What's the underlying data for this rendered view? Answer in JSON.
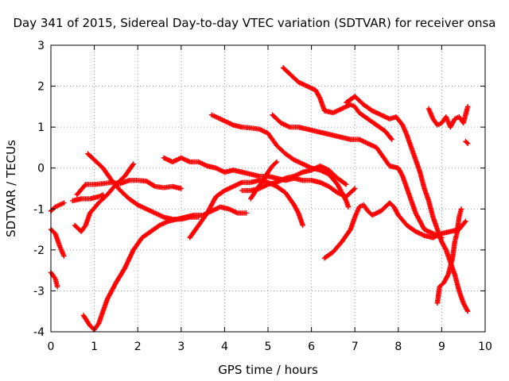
{
  "chart_data": {
    "type": "scatter",
    "title": "Day 341 of 2015, Sidereal Day-to-day VTEC variation (SDTVAR) for receiver onsa",
    "xlabel": "GPS time / hours",
    "ylabel": "SDTVAR / TECUs",
    "xlim": [
      0,
      10
    ],
    "ylim": [
      -4,
      3
    ],
    "x_ticks": [
      0,
      1,
      2,
      3,
      4,
      5,
      6,
      7,
      8,
      9,
      10
    ],
    "y_ticks": [
      -4,
      -3,
      -2,
      -1,
      0,
      1,
      2,
      3
    ],
    "grid": true,
    "marker": "+",
    "color": "#ff0000",
    "series": [
      {
        "points": [
          [
            0.0,
            -1.05
          ],
          [
            0.1,
            -0.95
          ],
          [
            0.2,
            -0.9
          ],
          [
            0.3,
            -0.85
          ]
        ]
      },
      {
        "points": [
          [
            0.0,
            -1.5
          ],
          [
            0.1,
            -1.6
          ],
          [
            0.2,
            -1.9
          ],
          [
            0.3,
            -2.15
          ]
        ]
      },
      {
        "points": [
          [
            0.0,
            -2.55
          ],
          [
            0.1,
            -2.7
          ],
          [
            0.15,
            -2.9
          ]
        ]
      },
      {
        "points": [
          [
            0.5,
            -0.8
          ],
          [
            0.7,
            -0.75
          ],
          [
            0.9,
            -0.75
          ],
          [
            1.1,
            -0.7
          ],
          [
            1.2,
            -0.65
          ]
        ]
      },
      {
        "points": [
          [
            0.55,
            -1.4
          ],
          [
            0.7,
            -1.55
          ],
          [
            0.8,
            -1.4
          ],
          [
            0.9,
            -1.1
          ],
          [
            1.1,
            -0.85
          ],
          [
            1.3,
            -0.65
          ],
          [
            1.5,
            -0.4
          ],
          [
            1.7,
            -0.2
          ],
          [
            1.9,
            0.1
          ]
        ]
      },
      {
        "points": [
          [
            0.6,
            -0.65
          ],
          [
            0.8,
            -0.4
          ],
          [
            1.0,
            -0.4
          ],
          [
            1.2,
            -0.38
          ],
          [
            1.4,
            -0.35
          ],
          [
            1.6,
            -0.38
          ],
          [
            1.8,
            -0.3
          ],
          [
            2.0,
            -0.3
          ],
          [
            2.2,
            -0.32
          ],
          [
            2.4,
            -0.45
          ],
          [
            2.6,
            -0.48
          ],
          [
            2.8,
            -0.45
          ],
          [
            3.0,
            -0.5
          ]
        ]
      },
      {
        "points": [
          [
            0.85,
            0.35
          ],
          [
            1.0,
            0.2
          ],
          [
            1.2,
            0.0
          ],
          [
            1.4,
            -0.3
          ],
          [
            1.6,
            -0.55
          ],
          [
            1.8,
            -0.75
          ],
          [
            2.0,
            -0.9
          ],
          [
            2.2,
            -1.0
          ],
          [
            2.4,
            -1.1
          ],
          [
            2.6,
            -1.2
          ],
          [
            2.8,
            -1.25
          ],
          [
            3.0,
            -1.25
          ],
          [
            3.2,
            -1.2
          ],
          [
            3.4,
            -1.2
          ]
        ]
      },
      {
        "points": [
          [
            0.75,
            -3.6
          ],
          [
            0.9,
            -3.85
          ],
          [
            1.0,
            -3.95
          ],
          [
            1.1,
            -3.8
          ],
          [
            1.2,
            -3.5
          ],
          [
            1.3,
            -3.2
          ],
          [
            1.5,
            -2.8
          ],
          [
            1.7,
            -2.45
          ],
          [
            1.9,
            -2.0
          ],
          [
            2.1,
            -1.7
          ],
          [
            2.3,
            -1.55
          ],
          [
            2.5,
            -1.4
          ],
          [
            2.7,
            -1.3
          ],
          [
            2.9,
            -1.25
          ],
          [
            3.1,
            -1.2
          ],
          [
            3.3,
            -1.15
          ],
          [
            3.5,
            -1.15
          ],
          [
            3.7,
            -1.05
          ],
          [
            3.9,
            -0.95
          ],
          [
            4.1,
            -1.0
          ],
          [
            4.3,
            -1.1
          ],
          [
            4.5,
            -1.1
          ]
        ]
      },
      {
        "points": [
          [
            2.6,
            0.25
          ],
          [
            2.8,
            0.15
          ],
          [
            3.0,
            0.25
          ],
          [
            3.2,
            0.15
          ],
          [
            3.4,
            0.15
          ],
          [
            3.6,
            0.05
          ],
          [
            3.8,
            0.0
          ],
          [
            4.0,
            -0.1
          ],
          [
            4.2,
            -0.05
          ],
          [
            4.4,
            -0.1
          ],
          [
            4.6,
            -0.15
          ],
          [
            4.8,
            -0.2
          ],
          [
            5.0,
            -0.2
          ],
          [
            5.2,
            -0.25
          ],
          [
            5.4,
            -0.3
          ],
          [
            5.6,
            -0.25
          ],
          [
            5.8,
            -0.3
          ],
          [
            6.0,
            -0.3
          ],
          [
            6.2,
            -0.35
          ],
          [
            6.4,
            -0.45
          ],
          [
            6.6,
            -0.6
          ],
          [
            6.8,
            -0.7
          ],
          [
            7.0,
            -0.5
          ]
        ]
      },
      {
        "points": [
          [
            3.2,
            -1.7
          ],
          [
            3.4,
            -1.4
          ],
          [
            3.6,
            -1.1
          ],
          [
            3.8,
            -0.7
          ],
          [
            4.0,
            -0.55
          ],
          [
            4.2,
            -0.45
          ],
          [
            4.4,
            -0.35
          ],
          [
            4.6,
            -0.35
          ],
          [
            4.8,
            -0.3
          ],
          [
            5.0,
            -0.35
          ],
          [
            5.2,
            -0.45
          ],
          [
            5.4,
            -0.6
          ],
          [
            5.6,
            -0.9
          ],
          [
            5.7,
            -1.1
          ],
          [
            5.8,
            -1.4
          ]
        ]
      },
      {
        "points": [
          [
            3.7,
            1.3
          ],
          [
            3.8,
            1.25
          ],
          [
            4.0,
            1.15
          ],
          [
            4.2,
            1.05
          ],
          [
            4.4,
            1.0
          ],
          [
            4.6,
            0.98
          ],
          [
            4.8,
            0.95
          ],
          [
            5.0,
            0.85
          ],
          [
            5.1,
            0.7
          ],
          [
            5.2,
            0.55
          ],
          [
            5.4,
            0.35
          ],
          [
            5.6,
            0.2
          ],
          [
            5.8,
            0.1
          ],
          [
            6.0,
            0.0
          ],
          [
            6.2,
            -0.05
          ],
          [
            6.4,
            -0.15
          ],
          [
            6.6,
            -0.4
          ],
          [
            6.8,
            -0.8
          ],
          [
            6.85,
            -0.95
          ]
        ]
      },
      {
        "points": [
          [
            4.4,
            -0.55
          ],
          [
            4.6,
            -0.55
          ],
          [
            4.8,
            -0.5
          ],
          [
            5.0,
            -0.4
          ],
          [
            5.2,
            -0.35
          ],
          [
            5.4,
            -0.25
          ],
          [
            5.6,
            -0.2
          ],
          [
            5.8,
            -0.1
          ],
          [
            6.0,
            -0.05
          ],
          [
            6.2,
            0.05
          ],
          [
            6.4,
            -0.05
          ],
          [
            6.6,
            -0.25
          ],
          [
            6.8,
            -0.4
          ]
        ]
      },
      {
        "points": [
          [
            4.6,
            -0.75
          ],
          [
            4.75,
            -0.5
          ],
          [
            4.9,
            -0.3
          ],
          [
            5.0,
            -0.1
          ],
          [
            5.1,
            0.05
          ],
          [
            5.2,
            0.15
          ]
        ]
      },
      {
        "points": [
          [
            5.1,
            1.3
          ],
          [
            5.3,
            1.1
          ],
          [
            5.5,
            1.0
          ],
          [
            5.7,
            1.0
          ],
          [
            5.9,
            0.95
          ],
          [
            6.1,
            0.9
          ],
          [
            6.3,
            0.85
          ],
          [
            6.5,
            0.8
          ],
          [
            6.7,
            0.75
          ],
          [
            6.9,
            0.7
          ],
          [
            7.1,
            0.7
          ],
          [
            7.3,
            0.6
          ],
          [
            7.5,
            0.5
          ],
          [
            7.6,
            0.35
          ],
          [
            7.7,
            0.2
          ],
          [
            7.8,
            0.05
          ],
          [
            8.0,
            0.0
          ],
          [
            8.1,
            -0.2
          ],
          [
            8.2,
            -0.5
          ],
          [
            8.3,
            -0.8
          ],
          [
            8.4,
            -1.1
          ],
          [
            8.5,
            -1.3
          ],
          [
            8.6,
            -1.5
          ],
          [
            8.8,
            -1.6
          ],
          [
            9.0,
            -1.7
          ]
        ]
      },
      {
        "points": [
          [
            5.35,
            2.45
          ],
          [
            5.5,
            2.3
          ],
          [
            5.7,
            2.1
          ],
          [
            5.9,
            2.0
          ],
          [
            6.1,
            1.9
          ],
          [
            6.2,
            1.7
          ],
          [
            6.3,
            1.4
          ],
          [
            6.5,
            1.35
          ],
          [
            6.7,
            1.45
          ],
          [
            6.9,
            1.55
          ],
          [
            7.0,
            1.5
          ],
          [
            7.1,
            1.35
          ],
          [
            7.3,
            1.2
          ],
          [
            7.5,
            1.05
          ],
          [
            7.7,
            0.9
          ],
          [
            7.85,
            0.7
          ]
        ]
      },
      {
        "points": [
          [
            6.8,
            1.6
          ],
          [
            7.0,
            1.75
          ],
          [
            7.2,
            1.55
          ],
          [
            7.4,
            1.4
          ],
          [
            7.6,
            1.3
          ],
          [
            7.8,
            1.2
          ],
          [
            7.95,
            1.25
          ],
          [
            8.1,
            1.05
          ],
          [
            8.2,
            0.8
          ],
          [
            8.3,
            0.5
          ],
          [
            8.4,
            0.2
          ],
          [
            8.5,
            -0.1
          ],
          [
            8.6,
            -0.5
          ],
          [
            8.7,
            -0.8
          ],
          [
            8.8,
            -1.2
          ],
          [
            8.9,
            -1.5
          ],
          [
            9.0,
            -1.8
          ],
          [
            9.1,
            -2.0
          ],
          [
            9.2,
            -2.3
          ],
          [
            9.3,
            -2.6
          ],
          [
            9.4,
            -3.0
          ],
          [
            9.5,
            -3.3
          ],
          [
            9.6,
            -3.5
          ]
        ]
      },
      {
        "points": [
          [
            6.3,
            -2.2
          ],
          [
            6.5,
            -2.05
          ],
          [
            6.7,
            -1.8
          ],
          [
            6.9,
            -1.5
          ],
          [
            7.0,
            -1.2
          ],
          [
            7.1,
            -0.95
          ],
          [
            7.2,
            -0.9
          ],
          [
            7.3,
            -1.05
          ],
          [
            7.4,
            -1.15
          ],
          [
            7.6,
            -1.05
          ],
          [
            7.8,
            -0.85
          ],
          [
            7.9,
            -0.95
          ],
          [
            8.0,
            -1.15
          ],
          [
            8.2,
            -1.4
          ],
          [
            8.4,
            -1.55
          ],
          [
            8.6,
            -1.65
          ],
          [
            8.8,
            -1.7
          ],
          [
            9.0,
            -1.6
          ],
          [
            9.2,
            -1.55
          ],
          [
            9.4,
            -1.5
          ],
          [
            9.55,
            -1.3
          ]
        ]
      },
      {
        "points": [
          [
            8.7,
            1.45
          ],
          [
            8.8,
            1.2
          ],
          [
            8.9,
            1.05
          ],
          [
            9.0,
            1.1
          ],
          [
            9.1,
            1.25
          ],
          [
            9.2,
            1.0
          ],
          [
            9.3,
            1.2
          ],
          [
            9.4,
            1.25
          ],
          [
            9.5,
            1.1
          ],
          [
            9.6,
            1.5
          ]
        ]
      },
      {
        "points": [
          [
            8.9,
            -3.3
          ],
          [
            8.95,
            -2.9
          ],
          [
            9.05,
            -2.8
          ],
          [
            9.15,
            -2.6
          ],
          [
            9.25,
            -2.2
          ],
          [
            9.3,
            -1.8
          ],
          [
            9.35,
            -1.6
          ],
          [
            9.4,
            -1.2
          ],
          [
            9.45,
            -1.0
          ]
        ]
      },
      {
        "points": [
          [
            9.55,
            0.65
          ],
          [
            9.6,
            0.6
          ]
        ]
      }
    ]
  }
}
